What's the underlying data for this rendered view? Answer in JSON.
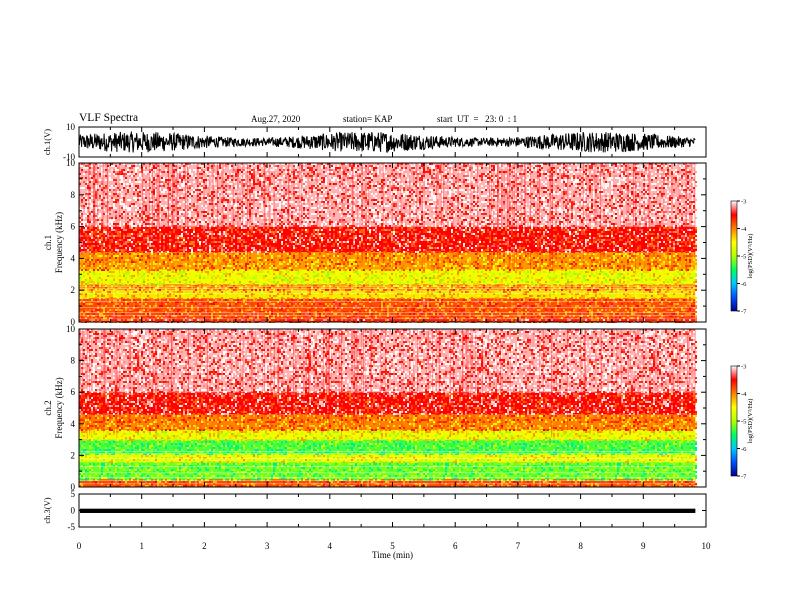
{
  "header": {
    "title": "VLF Spectra",
    "date": "Aug.27, 2020",
    "station": "station= KAP",
    "start": "start  UT  =   23: 0  : 1"
  },
  "chart_data": [
    {
      "type": "line",
      "panel": "ch1-waveform",
      "ylabel": "ch.1(V)",
      "ylim": [
        -10,
        10
      ],
      "y_tick_labels": [
        "-10",
        "10"
      ],
      "xlim": [
        0,
        10
      ],
      "description_values": {
        "typical_min": -7,
        "typical_max": 7
      },
      "color": "#000000"
    },
    {
      "type": "heatmap",
      "panel": "ch1-spectrogram",
      "ylabel": "ch.1\nFrequency (kHz)",
      "ylabel_lines": [
        "ch.1",
        "Frequency (kHz)"
      ],
      "ylim": [
        0,
        10
      ],
      "y_ticks": [
        0,
        2,
        4,
        6,
        8,
        10
      ],
      "y_tick_labels": [
        "0",
        "2",
        "4",
        "6",
        "8",
        "10"
      ],
      "xlim": [
        0,
        9.83
      ],
      "color_bands": [
        {
          "freq_from": 0,
          "freq_to": 0.3,
          "level": -3.6
        },
        {
          "freq_from": 0.3,
          "freq_to": 1.5,
          "level": -3.8
        },
        {
          "freq_from": 1.5,
          "freq_to": 2.0,
          "level": -4.4
        },
        {
          "freq_from": 2.0,
          "freq_to": 2.4,
          "level": -4.1
        },
        {
          "freq_from": 2.4,
          "freq_to": 3.3,
          "level": -4.6
        },
        {
          "freq_from": 3.3,
          "freq_to": 4.4,
          "level": -4.1
        },
        {
          "freq_from": 4.4,
          "freq_to": 6.0,
          "level": -3.5
        },
        {
          "freq_from": 6.0,
          "freq_to": 10.0,
          "level": -3.15
        }
      ],
      "colorbar": {
        "label": "log(PSD)(V²/Hz)",
        "range": [
          -7,
          -3
        ],
        "ticks": [
          "-3",
          "-4",
          "-5",
          "-6",
          "-7"
        ]
      }
    },
    {
      "type": "heatmap",
      "panel": "ch2-spectrogram",
      "ylabel_lines": [
        "ch.2",
        "Frequency (kHz)"
      ],
      "ylim": [
        0,
        10
      ],
      "y_ticks": [
        0,
        2,
        4,
        6,
        8,
        10
      ],
      "y_tick_labels": [
        "0",
        "2",
        "4",
        "6",
        "8",
        "10"
      ],
      "xlim": [
        0,
        9.83
      ],
      "color_bands": [
        {
          "freq_from": 0,
          "freq_to": 0.5,
          "level": -3.8
        },
        {
          "freq_from": 0.5,
          "freq_to": 1.6,
          "level": -5.2
        },
        {
          "freq_from": 1.6,
          "freq_to": 2.1,
          "level": -4.6
        },
        {
          "freq_from": 2.1,
          "freq_to": 3.0,
          "level": -5.3
        },
        {
          "freq_from": 3.0,
          "freq_to": 3.6,
          "level": -4.6
        },
        {
          "freq_from": 3.6,
          "freq_to": 4.6,
          "level": -4.0
        },
        {
          "freq_from": 4.6,
          "freq_to": 6.0,
          "level": -3.5
        },
        {
          "freq_from": 6.0,
          "freq_to": 10.0,
          "level": -3.15
        }
      ],
      "colorbar": {
        "label": "log(PSD)(V²/Hz)",
        "range": [
          -7,
          -3
        ],
        "ticks": [
          "-3",
          "-4",
          "-5",
          "-6",
          "-7"
        ]
      }
    },
    {
      "type": "line",
      "panel": "ch3-waveform",
      "ylabel": "ch.3(V)",
      "ylim": [
        -5,
        5
      ],
      "y_tick_labels": [
        "-5",
        "0",
        "5"
      ],
      "xlim": [
        0,
        10
      ],
      "description_values": {
        "typical_min": -0.7,
        "typical_max": 0.5
      },
      "color": "#000000"
    }
  ],
  "xaxis": {
    "label": "Time (min)",
    "ticks": [
      0,
      1,
      2,
      3,
      4,
      5,
      6,
      7,
      8,
      9,
      10
    ],
    "tick_labels": [
      "0",
      "1",
      "2",
      "3",
      "4",
      "5",
      "6",
      "7",
      "8",
      "9",
      "10"
    ]
  },
  "colors": {
    "colormap": [
      "#000090",
      "#0050ff",
      "#00c8ff",
      "#00ff60",
      "#b4ff00",
      "#ffff00",
      "#ff8000",
      "#ff0000",
      "#ffffff"
    ]
  }
}
